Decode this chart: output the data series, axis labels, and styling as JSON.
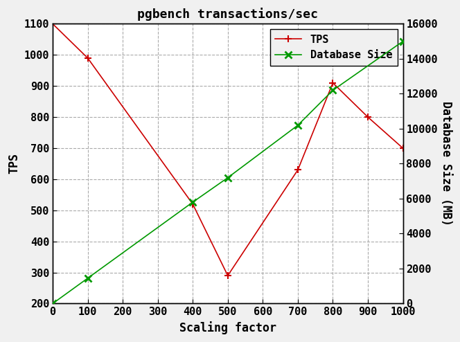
{
  "title": "pgbench transactions/sec",
  "xlabel": "Scaling factor",
  "ylabel_left": "TPS",
  "ylabel_right": "Database Size (MB)",
  "tps_x": [
    0,
    100,
    400,
    500,
    700,
    800,
    900,
    1000
  ],
  "tps_y": [
    1100,
    990,
    520,
    290,
    630,
    910,
    800,
    700
  ],
  "db_x": [
    0,
    100,
    400,
    500,
    700,
    800,
    1000
  ],
  "db_y": [
    0,
    1450,
    5800,
    7200,
    10200,
    12200,
    15000
  ],
  "tps_color": "#cc0000",
  "db_color": "#009900",
  "bg_color": "#f0f0f0",
  "plot_bg_color": "#ffffff",
  "grid_color": "#aaaaaa",
  "legend_tps": "TPS",
  "legend_db": "Database Size",
  "xlim": [
    0,
    1000
  ],
  "ylim_left": [
    200,
    1100
  ],
  "ylim_right": [
    0,
    16000
  ],
  "xticks": [
    0,
    100,
    200,
    300,
    400,
    500,
    600,
    700,
    800,
    900,
    1000
  ],
  "yticks_left": [
    200,
    300,
    400,
    500,
    600,
    700,
    800,
    900,
    1000,
    1100
  ],
  "yticks_right": [
    0,
    2000,
    4000,
    6000,
    8000,
    10000,
    12000,
    14000,
    16000
  ],
  "title_fontsize": 13,
  "axis_label_fontsize": 12,
  "tick_fontsize": 11,
  "legend_fontsize": 11
}
